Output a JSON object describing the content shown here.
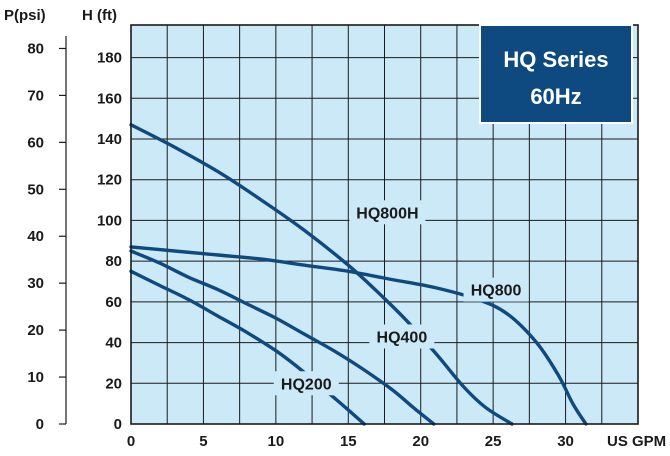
{
  "chart_data": {
    "type": "line",
    "badge": {
      "line1": "HQ Series",
      "line2": "60Hz"
    },
    "xlabel": "US GPM",
    "ylabel": "H (ft)",
    "ylabel2": "P(psi)",
    "xlim": [
      0,
      35
    ],
    "ylim": [
      0,
      196
    ],
    "y2lim": [
      0,
      85
    ],
    "x_ticks": [
      0,
      5,
      10,
      15,
      20,
      25,
      30
    ],
    "x_tick_labels": [
      "0",
      "5",
      "10",
      "15",
      "20",
      "25",
      "30"
    ],
    "y_ticks": [
      0,
      20,
      40,
      60,
      80,
      100,
      120,
      140,
      160,
      180
    ],
    "y_tick_labels": [
      "0",
      "20",
      "40",
      "60",
      "80",
      "100",
      "120",
      "140",
      "160",
      "180"
    ],
    "y2_ticks": [
      0,
      10,
      20,
      30,
      40,
      50,
      60,
      70,
      80
    ],
    "y2_tick_labels": [
      "0",
      "10",
      "20",
      "30",
      "40",
      "50",
      "60",
      "70",
      "80"
    ],
    "grid": true,
    "colors": {
      "plot_bg": "#cce9f7",
      "grid": "#1a1a1a",
      "line": "#0e4a80",
      "badge_bg": "#0e4a80",
      "badge_border": "#ffffff"
    },
    "series": [
      {
        "name": "HQ800H",
        "x": [
          0,
          3,
          6,
          9,
          12,
          15,
          17,
          19,
          21,
          23,
          24.5,
          26.3
        ],
        "y": [
          147,
          136,
          124,
          110,
          95,
          78,
          65,
          51,
          35,
          18,
          8,
          0
        ]
      },
      {
        "name": "HQ800",
        "x": [
          0,
          3,
          6,
          9,
          12,
          15,
          18,
          21,
          24,
          26,
          28,
          29.5,
          30.5,
          31.4
        ],
        "y": [
          87,
          85,
          83,
          81,
          78,
          75,
          71,
          67,
          61,
          54,
          40,
          24,
          10,
          0
        ]
      },
      {
        "name": "HQ400",
        "x": [
          0,
          2,
          4,
          6,
          8,
          10,
          12,
          14,
          16,
          18,
          19.5,
          20.9
        ],
        "y": [
          85,
          79,
          72,
          66,
          59,
          52,
          44,
          36,
          27,
          17,
          8,
          0
        ]
      },
      {
        "name": "HQ200",
        "x": [
          0,
          2,
          4,
          6,
          8,
          10,
          11.5,
          13,
          14.5,
          16.1
        ],
        "y": [
          75,
          68,
          61,
          53,
          45,
          36,
          28,
          19,
          10,
          0
        ]
      }
    ]
  }
}
